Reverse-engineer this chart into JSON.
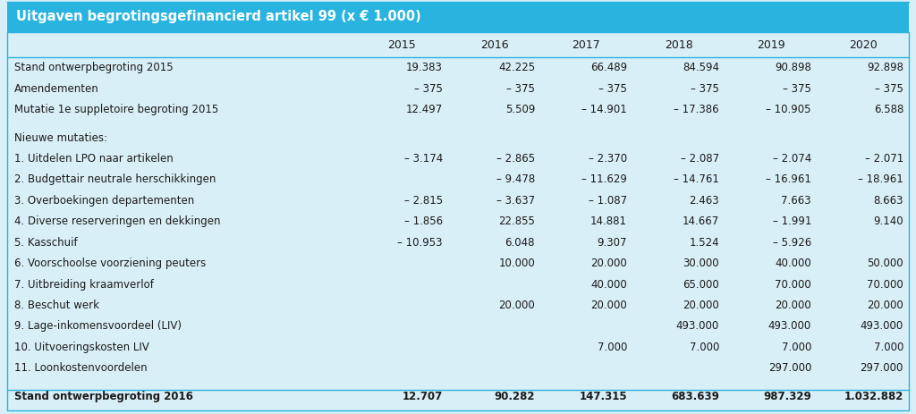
{
  "title": "Uitgaven begrotingsgefinancierd artikel 99 (x € 1.000)",
  "title_bg": "#29b4e0",
  "title_color": "white",
  "body_bg": "#d9eff7",
  "border_color": "#29b4e0",
  "text_color": "#1a1a1a",
  "columns": [
    "2015",
    "2016",
    "2017",
    "2018",
    "2019",
    "2020"
  ],
  "rows": [
    {
      "label": "Stand ontwerpbegroting 2015",
      "values": [
        "19.383",
        "42.225",
        "66.489",
        "84.594",
        "90.898",
        "92.898"
      ],
      "bold": false,
      "spacer": false
    },
    {
      "label": "Amendementen",
      "values": [
        "– 375",
        "– 375",
        "– 375",
        "– 375",
        "– 375",
        "– 375"
      ],
      "bold": false,
      "spacer": false
    },
    {
      "label": "Mutatie 1e suppletoire begroting 2015",
      "values": [
        "12.497",
        "5.509",
        "– 14.901",
        "– 17.386",
        "– 10.905",
        "6.588"
      ],
      "bold": false,
      "spacer": false
    },
    {
      "label": "",
      "values": [
        "",
        "",
        "",
        "",
        "",
        ""
      ],
      "bold": false,
      "spacer": true
    },
    {
      "label": "Nieuwe mutaties:",
      "values": [
        "",
        "",
        "",
        "",
        "",
        ""
      ],
      "bold": false,
      "spacer": false
    },
    {
      "label": "1. Uitdelen LPO naar artikelen",
      "values": [
        "– 3.174",
        "– 2.865",
        "– 2.370",
        "– 2.087",
        "– 2.074",
        "– 2.071"
      ],
      "bold": false,
      "spacer": false
    },
    {
      "label": "2. Budgettair neutrale herschikkingen",
      "values": [
        "",
        "– 9.478",
        "– 11.629",
        "– 14.761",
        "– 16.961",
        "– 18.961"
      ],
      "bold": false,
      "spacer": false
    },
    {
      "label": "3. Overboekingen departementen",
      "values": [
        "– 2.815",
        "– 3.637",
        "– 1.087",
        "2.463",
        "7.663",
        "8.663"
      ],
      "bold": false,
      "spacer": false
    },
    {
      "label": "4. Diverse reserveringen en dekkingen",
      "values": [
        "– 1.856",
        "22.855",
        "14.881",
        "14.667",
        "– 1.991",
        "9.140"
      ],
      "bold": false,
      "spacer": false
    },
    {
      "label": "5. Kasschuif",
      "values": [
        "– 10.953",
        "6.048",
        "9.307",
        "1.524",
        "– 5.926",
        ""
      ],
      "bold": false,
      "spacer": false
    },
    {
      "label": "6. Voorschoolse voorziening peuters",
      "values": [
        "",
        "10.000",
        "20.000",
        "30.000",
        "40.000",
        "50.000"
      ],
      "bold": false,
      "spacer": false
    },
    {
      "label": "7. Uitbreiding kraamverlof",
      "values": [
        "",
        "",
        "40.000",
        "65.000",
        "70.000",
        "70.000"
      ],
      "bold": false,
      "spacer": false
    },
    {
      "label": "8. Beschut werk",
      "values": [
        "",
        "20.000",
        "20.000",
        "20.000",
        "20.000",
        "20.000"
      ],
      "bold": false,
      "spacer": false
    },
    {
      "label": "9. Lage-inkomensvoordeel (LIV)",
      "values": [
        "",
        "",
        "",
        "493.000",
        "493.000",
        "493.000"
      ],
      "bold": false,
      "spacer": false
    },
    {
      "label": "10. Uitvoeringskosten LIV",
      "values": [
        "",
        "",
        "7.000",
        "7.000",
        "7.000",
        "7.000"
      ],
      "bold": false,
      "spacer": false
    },
    {
      "label": "11. Loonkostenvoordelen",
      "values": [
        "",
        "",
        "",
        "",
        "297.000",
        "297.000"
      ],
      "bold": false,
      "spacer": false
    },
    {
      "label": "",
      "values": [
        "",
        "",
        "",
        "",
        "",
        ""
      ],
      "bold": false,
      "spacer": true
    },
    {
      "label": "Stand ontwerpbegroting 2016",
      "values": [
        "12.707",
        "90.282",
        "147.315",
        "683.639",
        "987.329",
        "1.032.882"
      ],
      "bold": true,
      "spacer": false
    }
  ]
}
